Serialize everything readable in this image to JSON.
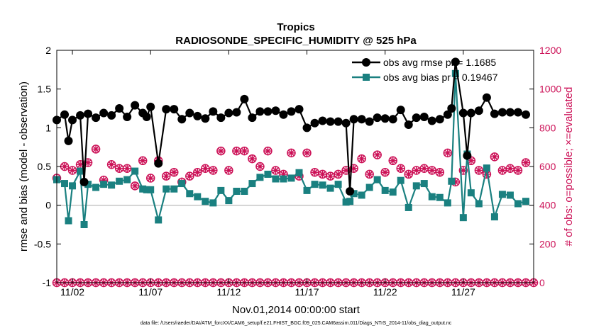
{
  "chart_data": {
    "type": "line",
    "title": "Tropics",
    "subtitle": "RADIOSONDE_SPECIFIC_HUMIDITY @ 525 hPa",
    "xlabel": "Nov.01,2014 00:00:00 start",
    "ylabel": "rmse and bias (model - observation)",
    "y2label": "# of obs: o=possible; ×=evaluated",
    "footnote": "data file: /Users/raeder/DAI/ATM_forcXX/CAM6_setup/f.e21.FHIST_BGC.f09_025.CAM6assim.011/Diags_NTrS_2014-11/obs_diag_output.nc",
    "xlim": [
      1.0,
      31.5
    ],
    "ylim": [
      -1,
      2
    ],
    "y2lim": [
      0,
      1200
    ],
    "xticks": [
      2,
      7,
      12,
      17,
      22,
      27
    ],
    "xticklabels": [
      "11/02",
      "11/07",
      "11/12",
      "11/17",
      "11/22",
      "11/27"
    ],
    "yticks": [
      -1,
      -0.5,
      0,
      0.5,
      1,
      1.5,
      2
    ],
    "yticklabels": [
      "-1",
      "-0.5",
      "0",
      "0.5",
      "1",
      "1.5",
      "2"
    ],
    "y2ticks": [
      0,
      200,
      400,
      600,
      800,
      1000,
      1200
    ],
    "y2ticklabels": [
      "0",
      "200",
      "400",
      "600",
      "800",
      "1000",
      "1200"
    ],
    "legend_position": "top-right",
    "colors": {
      "rmse": "#000000",
      "bias": "#1a8080",
      "count": "#cc1157",
      "zero": "#b3b3b3"
    },
    "series": [
      {
        "name": "obs avg rmse pr = 1.1685",
        "axis": "left",
        "x": [
          1.0,
          1.5,
          1.75,
          2.0,
          2.5,
          2.75,
          3.0,
          3.5,
          4.0,
          4.5,
          5.0,
          5.5,
          6.0,
          6.5,
          6.75,
          7.0,
          7.5,
          8.0,
          8.5,
          9.0,
          9.5,
          10.0,
          10.5,
          11.0,
          11.5,
          12.0,
          12.5,
          13.0,
          13.5,
          14.0,
          14.5,
          15.0,
          15.5,
          16.0,
          16.5,
          17.0,
          17.5,
          18.0,
          18.5,
          19.0,
          19.5,
          19.75,
          20.0,
          20.5,
          21.0,
          21.5,
          22.0,
          22.5,
          23.0,
          23.5,
          24.0,
          24.5,
          25.0,
          25.5,
          26.0,
          26.25,
          26.5,
          27.0,
          27.25,
          27.5,
          28.0,
          28.5,
          29.0,
          29.5,
          30.0,
          30.5,
          31.0
        ],
        "values": [
          1.1,
          1.17,
          0.83,
          1.1,
          1.16,
          0.3,
          1.18,
          1.13,
          1.19,
          1.16,
          1.25,
          1.14,
          1.29,
          1.19,
          1.14,
          1.27,
          0.54,
          1.24,
          1.24,
          1.11,
          1.19,
          1.15,
          1.12,
          1.21,
          1.13,
          1.19,
          1.2,
          1.37,
          1.13,
          1.21,
          1.21,
          1.22,
          1.17,
          1.21,
          1.24,
          1.0,
          1.06,
          1.09,
          1.08,
          1.08,
          1.06,
          0.18,
          1.11,
          1.11,
          1.08,
          1.13,
          1.12,
          1.11,
          1.23,
          1.04,
          1.13,
          1.14,
          1.09,
          1.11,
          1.17,
          1.25,
          1.85,
          1.19,
          0.64,
          1.19,
          1.22,
          1.39,
          1.18,
          1.2,
          1.2,
          1.2,
          1.17
        ]
      },
      {
        "name": "obs avg bias pr = 0.19467",
        "axis": "left",
        "x": [
          1.0,
          1.5,
          1.75,
          2.0,
          2.5,
          2.75,
          3.0,
          3.5,
          4.0,
          4.5,
          5.0,
          5.5,
          6.0,
          6.5,
          6.75,
          7.0,
          7.5,
          8.0,
          8.5,
          9.0,
          9.5,
          10.0,
          10.5,
          11.0,
          11.5,
          12.0,
          12.5,
          13.0,
          13.5,
          14.0,
          14.5,
          15.0,
          15.5,
          16.0,
          16.5,
          17.0,
          17.5,
          18.0,
          18.5,
          19.0,
          19.5,
          19.75,
          20.0,
          20.5,
          21.0,
          21.5,
          22.0,
          22.5,
          23.0,
          23.5,
          24.0,
          24.5,
          25.0,
          25.5,
          26.0,
          26.25,
          26.5,
          27.0,
          27.25,
          27.5,
          28.0,
          28.5,
          29.0,
          29.5,
          30.0,
          30.5,
          31.0
        ],
        "values": [
          0.33,
          0.28,
          -0.2,
          0.25,
          0.44,
          -0.25,
          0.27,
          0.23,
          0.27,
          0.26,
          0.31,
          0.33,
          0.44,
          0.21,
          0.2,
          0.2,
          -0.19,
          0.21,
          0.21,
          0.28,
          0.15,
          0.11,
          0.05,
          0.03,
          0.19,
          0.06,
          0.18,
          0.18,
          0.28,
          0.36,
          0.4,
          0.34,
          0.34,
          0.35,
          0.42,
          0.19,
          0.27,
          0.26,
          0.22,
          0.27,
          0.04,
          0.05,
          0.15,
          0.13,
          0.23,
          0.33,
          0.19,
          0.17,
          0.32,
          -0.03,
          0.25,
          0.28,
          0.11,
          0.1,
          0.03,
          0.31,
          1.7,
          -0.16,
          0.66,
          0.16,
          0.02,
          0.48,
          -0.15,
          0.14,
          0.13,
          0.02,
          0.05
        ]
      },
      {
        "name": "# of obs possible",
        "axis": "right",
        "x": [
          1.0,
          1.5,
          2.0,
          2.5,
          3.0,
          3.5,
          4.0,
          4.5,
          5.0,
          5.5,
          6.0,
          6.5,
          7.0,
          7.5,
          8.0,
          8.5,
          9.0,
          9.5,
          10.0,
          10.5,
          11.0,
          11.5,
          12.0,
          12.5,
          13.0,
          13.5,
          14.0,
          14.5,
          15.0,
          15.5,
          16.0,
          16.5,
          17.0,
          17.5,
          18.0,
          18.5,
          19.0,
          19.5,
          20.0,
          20.5,
          21.0,
          21.5,
          22.0,
          22.5,
          23.0,
          23.5,
          24.0,
          24.5,
          25.0,
          25.5,
          26.0,
          26.5,
          27.0,
          27.5,
          28.0,
          28.5,
          29.0,
          29.5,
          30.0,
          30.5,
          31.0
        ],
        "values": [
          540,
          600,
          580,
          610,
          620,
          690,
          530,
          610,
          590,
          590,
          500,
          630,
          540,
          630,
          550,
          570,
          520,
          550,
          570,
          590,
          580,
          680,
          580,
          680,
          680,
          640,
          600,
          680,
          580,
          560,
          670,
          550,
          670,
          570,
          560,
          550,
          560,
          580,
          590,
          640,
          560,
          660,
          570,
          630,
          590,
          560,
          580,
          590,
          580,
          570,
          670,
          520,
          580,
          630,
          580,
          560,
          650,
          580,
          590,
          580,
          620
        ]
      },
      {
        "name": "# of obs evaluated",
        "axis": "right",
        "x": [
          1.0,
          1.5,
          2.0,
          2.5,
          3.0,
          3.5,
          4.0,
          4.5,
          5.0,
          5.5,
          6.0,
          6.5,
          7.0,
          7.5,
          8.0,
          8.5,
          9.0,
          9.5,
          10.0,
          10.5,
          11.0,
          11.5,
          12.0,
          12.5,
          13.0,
          13.5,
          14.0,
          14.5,
          15.0,
          15.5,
          16.0,
          16.5,
          17.0,
          17.5,
          18.0,
          18.5,
          19.0,
          19.5,
          20.0,
          20.5,
          21.0,
          21.5,
          22.0,
          22.5,
          23.0,
          23.5,
          24.0,
          24.5,
          25.0,
          25.5,
          26.0,
          26.5,
          27.0,
          27.5,
          28.0,
          28.5,
          29.0,
          29.5,
          30.0,
          30.5,
          31.0
        ],
        "values": [
          540,
          600,
          580,
          610,
          620,
          690,
          530,
          610,
          590,
          590,
          500,
          630,
          540,
          630,
          550,
          570,
          520,
          550,
          570,
          590,
          580,
          680,
          580,
          680,
          680,
          640,
          600,
          680,
          580,
          560,
          670,
          550,
          670,
          570,
          560,
          550,
          560,
          580,
          590,
          640,
          560,
          660,
          570,
          630,
          590,
          560,
          580,
          590,
          580,
          570,
          670,
          520,
          580,
          630,
          580,
          560,
          650,
          580,
          590,
          580,
          620
        ]
      },
      {
        "name": "# of obs possible (zero)",
        "axis": "right",
        "x": [
          1.0,
          1.5,
          2.0,
          2.5,
          3.0,
          3.5,
          4.0,
          4.5,
          5.0,
          5.5,
          6.0,
          6.5,
          7.0,
          7.5,
          8.0,
          8.5,
          9.0,
          9.5,
          10.0,
          10.5,
          11.0,
          11.5,
          12.0,
          12.5,
          13.0,
          13.5,
          14.0,
          14.5,
          15.0,
          15.5,
          16.0,
          16.5,
          17.0,
          17.5,
          18.0,
          18.5,
          19.0,
          19.5,
          20.0,
          20.5,
          21.0,
          21.5,
          22.0,
          22.5,
          23.0,
          23.5,
          24.0,
          24.5,
          25.0,
          25.5,
          26.0,
          26.5,
          27.0,
          27.5,
          28.0,
          28.5,
          29.0,
          29.5,
          30.0,
          30.5,
          31.0,
          31.5
        ],
        "values": [
          0,
          0,
          0,
          0,
          0,
          0,
          0,
          0,
          0,
          0,
          0,
          0,
          0,
          0,
          0,
          0,
          0,
          0,
          0,
          0,
          0,
          0,
          0,
          0,
          0,
          0,
          0,
          0,
          0,
          0,
          0,
          0,
          0,
          0,
          0,
          0,
          0,
          0,
          0,
          0,
          0,
          0,
          0,
          0,
          0,
          0,
          0,
          0,
          0,
          0,
          0,
          0,
          0,
          0,
          0,
          0,
          0,
          0,
          0,
          0,
          0,
          0
        ]
      }
    ]
  }
}
